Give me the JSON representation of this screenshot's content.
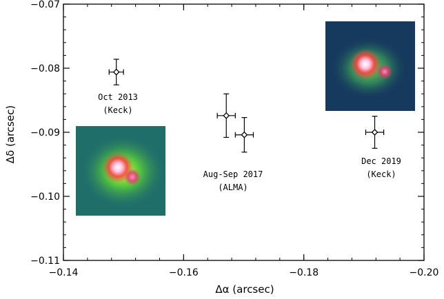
{
  "chart_data": {
    "type": "scatter",
    "xlabel": "Δα (arcsec)",
    "ylabel": "Δδ (arcsec)",
    "xlim": [
      -0.14,
      -0.2
    ],
    "ylim": [
      -0.11,
      -0.07
    ],
    "x_ticks": [
      "−0.14",
      "−0.16",
      "−0.18",
      "−0.20"
    ],
    "y_ticks": [
      "−0.11",
      "−0.10",
      "−0.09",
      "−0.08",
      "−0.07"
    ],
    "points": [
      {
        "x": -0.1488,
        "y": -0.0806,
        "xerr": 0.0012,
        "yerr": 0.002
      },
      {
        "x": -0.1671,
        "y": -0.0874,
        "xerr": 0.0015,
        "yerr": 0.0034
      },
      {
        "x": -0.1701,
        "y": -0.0904,
        "xerr": 0.0015,
        "yerr": 0.0027
      },
      {
        "x": -0.1918,
        "y": -0.09,
        "xerr": 0.0015,
        "yerr": 0.0025
      }
    ],
    "annotations": [
      {
        "line1": "Oct 2013",
        "line2": "(Keck)"
      },
      {
        "line1": "Aug-Sep 2017",
        "line2": "(ALMA)"
      },
      {
        "line1": "Dec 2019",
        "line2": "(Keck)"
      }
    ],
    "insets": [
      {
        "name": "keck-2013-image",
        "background": "#1f6e6a"
      },
      {
        "name": "keck-2019-image",
        "background": "#163a5e"
      }
    ]
  }
}
